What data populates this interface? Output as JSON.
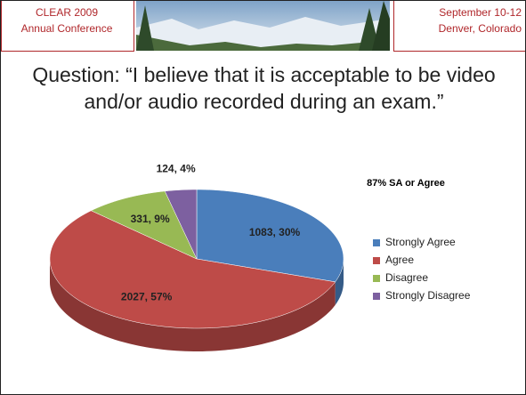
{
  "header": {
    "left_line1": "CLEAR 2009",
    "left_line2": "Annual Conference",
    "right_line1": "September 10-12",
    "right_line2": "Denver, Colorado"
  },
  "question": "Question: “I believe that it is acceptable to be video and/or audio recorded during an exam.”",
  "chart_data": {
    "type": "pie",
    "categories": [
      "Strongly Agree",
      "Agree",
      "Disagree",
      "Strongly Disagree"
    ],
    "values": [
      1083,
      2027,
      331,
      124
    ],
    "value_labels": [
      "1083, 30%",
      "2027, 57%",
      "331, 9%",
      "124, 4%"
    ],
    "colors": [
      "#4a7ebb",
      "#be4b48",
      "#98b954",
      "#7d60a0"
    ],
    "annotation": "87% SA or Agree",
    "legend": "right"
  }
}
